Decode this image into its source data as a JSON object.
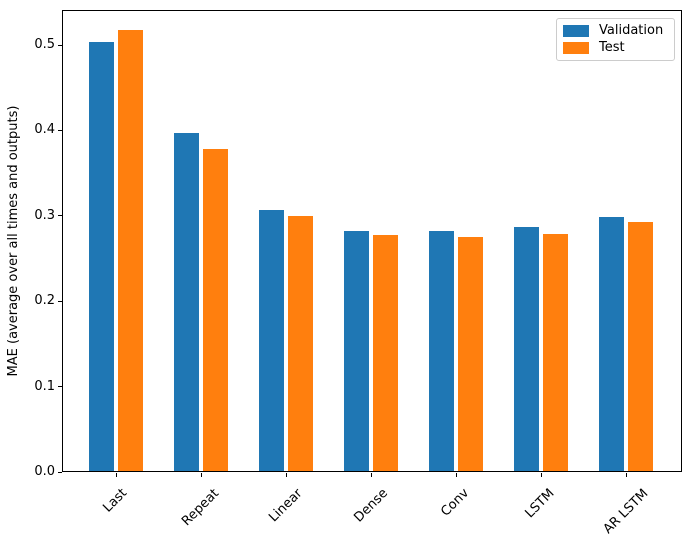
{
  "chart_data": {
    "type": "bar",
    "title": "",
    "xlabel": "",
    "ylabel": "MAE (average over all times and outputs)",
    "categories": [
      "Last",
      "Repeat",
      "Linear",
      "Dense",
      "Conv",
      "LSTM",
      "AR LSTM"
    ],
    "series": [
      {
        "name": "Validation",
        "color": "#1f77b4",
        "values": [
          0.502,
          0.396,
          0.306,
          0.281,
          0.281,
          0.286,
          0.298
        ]
      },
      {
        "name": "Test",
        "color": "#ff7f0e",
        "values": [
          0.516,
          0.377,
          0.299,
          0.276,
          0.274,
          0.277,
          0.292
        ]
      }
    ],
    "ylim": [
      0,
      0.541
    ],
    "yticks": [
      0.0,
      0.1,
      0.2,
      0.3,
      0.4,
      0.5
    ],
    "ytick_labels": [
      "0.0",
      "0.1",
      "0.2",
      "0.3",
      "0.4",
      "0.5"
    ],
    "xtick_rotation_deg": 45,
    "grid": false,
    "bar_width_units": 0.3,
    "bar_offset_units": 0.17,
    "legend": {
      "location": "upper right",
      "border_color": "#cccccc",
      "background": "#ffffff"
    },
    "axis_color": "#000000",
    "background": "#ffffff"
  }
}
